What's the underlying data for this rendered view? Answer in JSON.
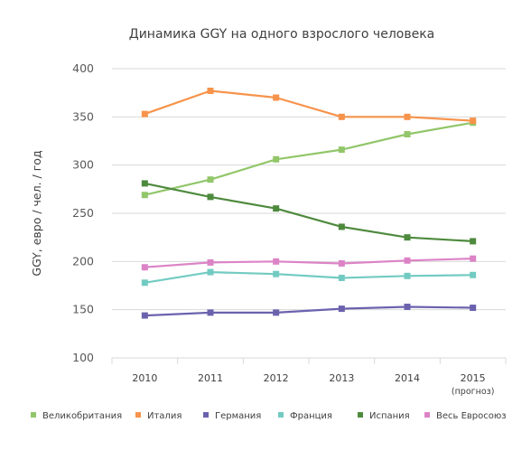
{
  "chart_data": {
    "type": "line",
    "title": "Динамика GGY на одного взрослого человека",
    "ylabel": "GGY, евро / чел. / год",
    "xlabel": "",
    "ylim": [
      100,
      400
    ],
    "yticks": [
      100,
      150,
      200,
      250,
      300,
      350,
      400
    ],
    "categories": [
      "2010",
      "2011",
      "2012",
      "2013",
      "2014",
      "2015"
    ],
    "category_sublabels": [
      "",
      "",
      "",
      "",
      "",
      "(прогноз)"
    ],
    "grid": true,
    "legend_position": "bottom",
    "series": [
      {
        "name": "Великобритания",
        "color": "#92c66a",
        "values": [
          269,
          285,
          306,
          316,
          332,
          344
        ]
      },
      {
        "name": "Италия",
        "color": "#f7934b",
        "values": [
          353,
          377,
          370,
          350,
          350,
          346
        ]
      },
      {
        "name": "Германия",
        "color": "#6b62ae",
        "values": [
          144,
          147,
          147,
          151,
          153,
          152
        ]
      },
      {
        "name": "Франция",
        "color": "#72cbc2",
        "values": [
          178,
          189,
          187,
          183,
          185,
          186
        ]
      },
      {
        "name": "Испания",
        "color": "#4e8a3e",
        "values": [
          281,
          267,
          255,
          236,
          225,
          221
        ]
      },
      {
        "name": "Весь Евросоюз",
        "color": "#dc83c6",
        "values": [
          194,
          199,
          200,
          198,
          201,
          203
        ]
      }
    ]
  }
}
